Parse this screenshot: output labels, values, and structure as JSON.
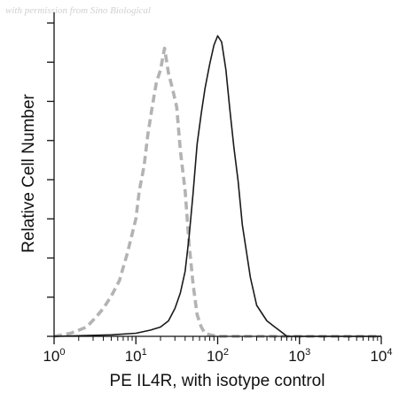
{
  "watermark": "with permission from Sino Biological",
  "chart_data": {
    "type": "line",
    "xlabel": "PE IL4R, with isotype control",
    "ylabel": "Relative Cell Number",
    "x_scale": "log",
    "xlim": [
      1,
      10000
    ],
    "ylim": [
      0,
      1
    ],
    "grid": false,
    "x_ticks": [
      {
        "value": 1,
        "base": "10",
        "exp": "0"
      },
      {
        "value": 10,
        "base": "10",
        "exp": "1"
      },
      {
        "value": 100,
        "base": "10",
        "exp": "2"
      },
      {
        "value": 1000,
        "base": "10",
        "exp": "3"
      },
      {
        "value": 10000,
        "base": "10",
        "exp": "4"
      }
    ],
    "series": [
      {
        "style": "dashed",
        "color": "#b3b3b3",
        "x": [
          1,
          1.6,
          2.5,
          3.2,
          4,
          5,
          6.3,
          7.9,
          10,
          11,
          12.6,
          14,
          15.8,
          17.8,
          20,
          22.4,
          25,
          28,
          31.6,
          35,
          40,
          44.7,
          50,
          56,
          63,
          70,
          80,
          100,
          200,
          1000,
          10000
        ],
        "y": [
          0,
          0.01,
          0.03,
          0.06,
          0.09,
          0.13,
          0.18,
          0.27,
          0.38,
          0.47,
          0.55,
          0.65,
          0.74,
          0.82,
          0.86,
          0.93,
          0.85,
          0.8,
          0.74,
          0.6,
          0.47,
          0.3,
          0.17,
          0.07,
          0.03,
          0.01,
          0.005,
          0,
          0,
          0,
          0
        ]
      },
      {
        "style": "solid",
        "color": "#1a1a1a",
        "x": [
          1,
          5,
          10,
          15,
          20,
          25,
          30,
          35,
          40,
          44.7,
          50,
          56,
          63,
          70,
          80,
          90,
          100,
          112,
          126,
          141,
          158,
          178,
          200,
          251,
          300,
          400,
          500,
          631,
          700,
          1000,
          10000
        ],
        "y": [
          0,
          0.005,
          0.01,
          0.02,
          0.03,
          0.05,
          0.09,
          0.14,
          0.21,
          0.32,
          0.46,
          0.62,
          0.72,
          0.8,
          0.88,
          0.94,
          0.97,
          0.95,
          0.86,
          0.73,
          0.61,
          0.5,
          0.36,
          0.19,
          0.1,
          0.05,
          0.03,
          0.01,
          0,
          0,
          0
        ]
      }
    ]
  }
}
